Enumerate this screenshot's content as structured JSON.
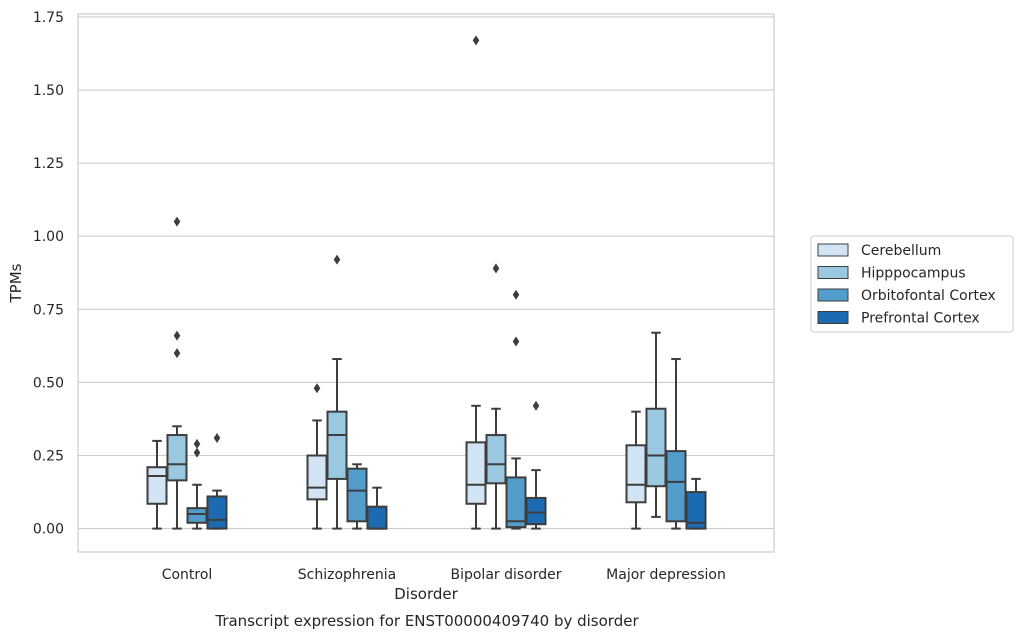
{
  "chart_data": {
    "type": "box",
    "title": "",
    "xlabel": "Disorder",
    "ylabel": "TPMs",
    "caption": "Transcript expression for ENST00000409740 by disorder",
    "ylim": [
      -0.08,
      1.76
    ],
    "yticks": [
      0,
      0.25,
      0.5,
      0.75,
      1.0,
      1.25,
      1.5,
      1.75
    ],
    "ytick_labels": [
      "0.00",
      "0.25",
      "0.50",
      "0.75",
      "1.00",
      "1.25",
      "1.50",
      "1.75"
    ],
    "grid": "horizontal",
    "legend_position": "right",
    "categories": [
      "Control",
      "Schizophrenia",
      "Bipolar disorder",
      "Major depression"
    ],
    "series": [
      {
        "name": "Cerebellum",
        "color": "#d2e3f3",
        "boxes": [
          {
            "whislo": 0.0,
            "q1": 0.085,
            "med": 0.18,
            "q3": 0.21,
            "whishi": 0.3,
            "fliers": []
          },
          {
            "whislo": 0.0,
            "q1": 0.1,
            "med": 0.14,
            "q3": 0.25,
            "whishi": 0.37,
            "fliers": [
              0.48
            ]
          },
          {
            "whislo": 0.0,
            "q1": 0.085,
            "med": 0.15,
            "q3": 0.295,
            "whishi": 0.42,
            "fliers": [
              1.67
            ]
          },
          {
            "whislo": 0.0,
            "q1": 0.09,
            "med": 0.15,
            "q3": 0.285,
            "whishi": 0.4,
            "fliers": []
          }
        ]
      },
      {
        "name": "Hipppocampus",
        "color": "#9ac8e0",
        "boxes": [
          {
            "whislo": 0.0,
            "q1": 0.165,
            "med": 0.22,
            "q3": 0.32,
            "whishi": 0.35,
            "fliers": [
              0.6,
              0.66,
              1.05
            ]
          },
          {
            "whislo": 0.0,
            "q1": 0.17,
            "med": 0.32,
            "q3": 0.4,
            "whishi": 0.58,
            "fliers": [
              0.92
            ]
          },
          {
            "whislo": 0.0,
            "q1": 0.155,
            "med": 0.22,
            "q3": 0.32,
            "whishi": 0.41,
            "fliers": [
              0.89
            ]
          },
          {
            "whislo": 0.04,
            "q1": 0.145,
            "med": 0.25,
            "q3": 0.41,
            "whishi": 0.67,
            "fliers": []
          }
        ]
      },
      {
        "name": "Orbitofontal Cortex",
        "color": "#529dcc",
        "boxes": [
          {
            "whislo": 0.0,
            "q1": 0.02,
            "med": 0.05,
            "q3": 0.07,
            "whishi": 0.15,
            "fliers": [
              0.26,
              0.29
            ]
          },
          {
            "whislo": 0.0,
            "q1": 0.025,
            "med": 0.13,
            "q3": 0.205,
            "whishi": 0.22,
            "fliers": []
          },
          {
            "whislo": 0.0,
            "q1": 0.005,
            "med": 0.025,
            "q3": 0.175,
            "whishi": 0.24,
            "fliers": [
              0.64,
              0.8
            ]
          },
          {
            "whislo": 0.0,
            "q1": 0.025,
            "med": 0.16,
            "q3": 0.265,
            "whishi": 0.58,
            "fliers": []
          }
        ]
      },
      {
        "name": "Prefrontal Cortex",
        "color": "#1c6aaf",
        "boxes": [
          {
            "whislo": 0.0,
            "q1": 0.0,
            "med": 0.03,
            "q3": 0.11,
            "whishi": 0.13,
            "fliers": [
              0.31
            ]
          },
          {
            "whislo": 0.0,
            "q1": 0.0,
            "med": 0.0,
            "q3": 0.075,
            "whishi": 0.14,
            "fliers": []
          },
          {
            "whislo": 0.0,
            "q1": 0.015,
            "med": 0.055,
            "q3": 0.105,
            "whishi": 0.2,
            "fliers": [
              0.42
            ]
          },
          {
            "whislo": 0.0,
            "q1": 0.0,
            "med": 0.02,
            "q3": 0.125,
            "whishi": 0.17,
            "fliers": []
          }
        ]
      }
    ]
  }
}
